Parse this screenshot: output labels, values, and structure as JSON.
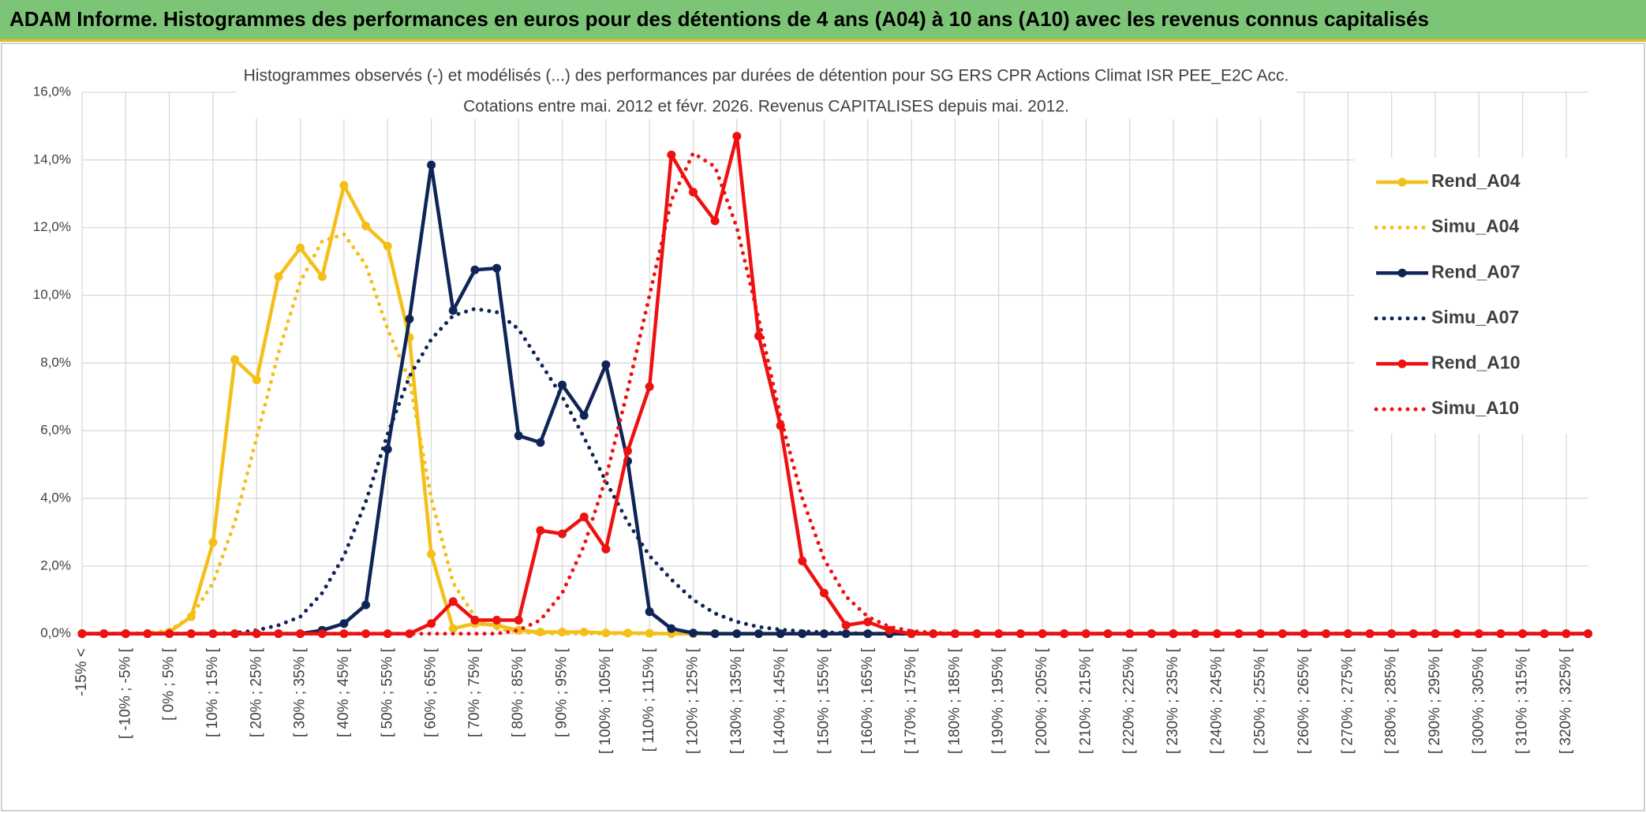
{
  "header": {
    "title": "ADAM Informe. Histogrammes des performances en euros pour des détentions de 4 ans (A04) à 10 ans (A10) avec les revenus connus capitalisés"
  },
  "chart_data": {
    "type": "line",
    "title": "Histogrammes observés (-) et modélisés (...) des performances par durées de détention pour SG ERS CPR Actions Climat ISR PEE_E2C Acc.",
    "subtitle": "Cotations entre mai. 2012 et févr. 2026. Revenus CAPITALISES depuis mai. 2012.",
    "categories": [
      "-15% <",
      null,
      "[ -10% ; -5% [",
      null,
      "[ 0% ; 5% [",
      null,
      "[ 10% ; 15% [",
      null,
      "[ 20% ; 25% [",
      null,
      "[ 30% ; 35% [",
      null,
      "[ 40% ; 45% [",
      null,
      "[ 50% ; 55% [",
      null,
      "[ 60% ; 65% [",
      null,
      "[ 70% ; 75% [",
      null,
      "[ 80% ; 85% [",
      null,
      "[ 90% ; 95% [",
      null,
      "[ 100% ; 105% [",
      null,
      "[ 110% ; 115% [",
      null,
      "[ 120% ; 125% [",
      null,
      "[ 130% ; 135% [",
      null,
      "[ 140% ; 145% [",
      null,
      "[ 150% ; 155% [",
      null,
      "[ 160% ; 165% [",
      null,
      "[ 170% ; 175% [",
      null,
      "[ 180% ; 185% [",
      null,
      "[ 190% ; 195% [",
      null,
      "[ 200% ; 205% [",
      null,
      "[ 210% ; 215% [",
      null,
      "[ 220% ; 225% [",
      null,
      "[ 230% ; 235% [",
      null,
      "[ 240% ; 245% [",
      null,
      "[ 250% ; 255% [",
      null,
      "[ 260% ; 265% [",
      null,
      "[ 270% ; 275% [",
      null,
      "[ 280% ; 285% [",
      null,
      "[ 290% ; 295% [",
      null,
      "[ 300% ; 305% [",
      null,
      "[ 310% ; 315% [",
      null,
      "[ 320% ; 325% [",
      null
    ],
    "series": [
      {
        "name": "Rend_A04",
        "color": "#f5bf19",
        "style": "solid",
        "marker": true,
        "values": [
          0,
          0,
          0,
          0,
          0.05,
          0.5,
          2.7,
          8.1,
          7.5,
          10.55,
          11.4,
          10.55,
          13.25,
          12.05,
          11.45,
          8.75,
          2.35,
          0.15,
          0.3,
          0.25,
          0.1,
          0.05,
          0.05,
          0.05,
          0.02,
          0.02,
          0.01,
          0,
          0,
          0,
          0,
          0,
          0,
          0,
          0,
          0,
          0,
          0,
          0,
          0,
          0,
          0,
          0,
          0,
          0,
          0,
          0,
          0,
          0,
          0,
          0,
          0,
          0,
          0,
          0,
          0,
          0,
          0,
          0,
          0,
          0,
          0,
          0,
          0,
          0,
          0,
          0,
          0,
          0,
          0
        ]
      },
      {
        "name": "Simu_A04",
        "color": "#f5bf19",
        "style": "dotted",
        "marker": false,
        "values": [
          0,
          0,
          0,
          0.02,
          0.1,
          0.5,
          1.5,
          3.3,
          5.8,
          8.3,
          10.4,
          11.6,
          11.8,
          10.9,
          9.0,
          7.5,
          4.0,
          1.5,
          0.5,
          0.15,
          0.05,
          0.01,
          0,
          0,
          0,
          0,
          0,
          0,
          0,
          0,
          0,
          0,
          0,
          0,
          0,
          0,
          0,
          0,
          0,
          0,
          0,
          0,
          0,
          0,
          0,
          0,
          0,
          0,
          0,
          0,
          0,
          0,
          0,
          0,
          0,
          0,
          0,
          0,
          0,
          0,
          0,
          0,
          0,
          0,
          0,
          0,
          0,
          0,
          0,
          0
        ]
      },
      {
        "name": "Rend_A07",
        "color": "#0f2557",
        "style": "solid",
        "marker": true,
        "values": [
          0,
          0,
          0,
          0,
          0,
          0,
          0,
          0,
          0,
          0,
          0,
          0.1,
          0.3,
          0.85,
          5.45,
          9.3,
          13.85,
          9.55,
          10.75,
          10.8,
          5.85,
          5.65,
          7.35,
          6.45,
          7.95,
          5.1,
          0.65,
          0.15,
          0.02,
          0,
          0,
          0,
          0,
          0,
          0,
          0,
          0,
          0,
          0,
          0,
          0,
          0,
          0,
          0,
          0,
          0,
          0,
          0,
          0,
          0,
          0,
          0,
          0,
          0,
          0,
          0,
          0,
          0,
          0,
          0,
          0,
          0,
          0,
          0,
          0,
          0,
          0,
          0,
          0,
          0
        ]
      },
      {
        "name": "Simu_A07",
        "color": "#0f2557",
        "style": "dotted",
        "marker": false,
        "values": [
          0,
          0,
          0,
          0,
          0,
          0,
          0,
          0.02,
          0.1,
          0.25,
          0.5,
          1.2,
          2.3,
          3.9,
          5.9,
          7.6,
          8.7,
          9.4,
          9.6,
          9.5,
          9.0,
          8.0,
          7.0,
          5.8,
          4.5,
          3.3,
          2.3,
          1.6,
          1.0,
          0.6,
          0.35,
          0.2,
          0.12,
          0.07,
          0.04,
          0.02,
          0,
          0,
          0,
          0,
          0,
          0,
          0,
          0,
          0,
          0,
          0,
          0,
          0,
          0,
          0,
          0,
          0,
          0,
          0,
          0,
          0,
          0,
          0,
          0,
          0,
          0,
          0,
          0,
          0,
          0,
          0,
          0,
          0,
          0
        ]
      },
      {
        "name": "Rend_A10",
        "color": "#ee1111",
        "style": "solid",
        "marker": true,
        "values": [
          0,
          0,
          0,
          0,
          0,
          0,
          0,
          0,
          0,
          0,
          0,
          0,
          0,
          0,
          0,
          0,
          0.3,
          0.95,
          0.4,
          0.4,
          0.4,
          3.05,
          2.95,
          3.45,
          2.5,
          5.4,
          7.3,
          14.15,
          13.05,
          12.2,
          14.7,
          8.8,
          6.15,
          2.15,
          1.2,
          0.25,
          0.35,
          0.1,
          0,
          0,
          0,
          0,
          0,
          0,
          0,
          0,
          0,
          0,
          0,
          0,
          0,
          0,
          0,
          0,
          0,
          0,
          0,
          0,
          0,
          0,
          0,
          0,
          0,
          0,
          0,
          0,
          0,
          0,
          0,
          0
        ]
      },
      {
        "name": "Simu_A10",
        "color": "#ee1111",
        "style": "dotted",
        "marker": false,
        "values": [
          0,
          0,
          0,
          0,
          0,
          0,
          0,
          0,
          0,
          0,
          0,
          0,
          0,
          0,
          0,
          0,
          0,
          0,
          0,
          0,
          0.1,
          0.4,
          1.2,
          2.6,
          4.6,
          7.2,
          10.0,
          12.8,
          14.2,
          13.8,
          12.0,
          9.3,
          6.4,
          4.0,
          2.2,
          1.1,
          0.5,
          0.2,
          0.08,
          0.03,
          0,
          0,
          0,
          0,
          0,
          0,
          0,
          0,
          0,
          0,
          0,
          0,
          0,
          0,
          0,
          0,
          0,
          0,
          0,
          0,
          0,
          0,
          0,
          0,
          0,
          0,
          0,
          0,
          0,
          0
        ]
      }
    ],
    "ylim": [
      0,
      16
    ],
    "yticks": [
      {
        "value": 0,
        "label": "0,0%"
      },
      {
        "value": 2,
        "label": "2,0%"
      },
      {
        "value": 4,
        "label": "4,0%"
      },
      {
        "value": 6,
        "label": "6,0%"
      },
      {
        "value": 8,
        "label": "8,0%"
      },
      {
        "value": 10,
        "label": "10,0%"
      },
      {
        "value": 12,
        "label": "12,0%"
      },
      {
        "value": 14,
        "label": "14,0%"
      },
      {
        "value": 16,
        "label": "16,0%"
      }
    ],
    "grid": true,
    "legend": "right"
  }
}
